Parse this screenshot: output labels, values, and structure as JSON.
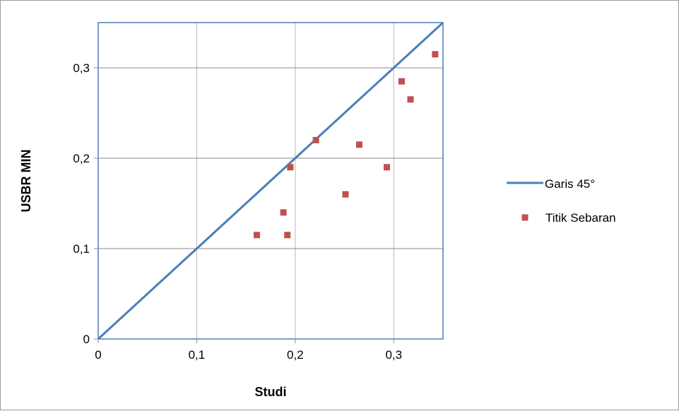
{
  "chart_data": {
    "type": "scatter",
    "xlabel": "Studi",
    "ylabel": "USBR MIN",
    "xlim": [
      0,
      0.35
    ],
    "ylim": [
      0,
      0.35
    ],
    "x_ticks": [
      {
        "value": 0,
        "label": "0"
      },
      {
        "value": 0.1,
        "label": "0,1"
      },
      {
        "value": 0.2,
        "label": "0,2"
      },
      {
        "value": 0.3,
        "label": "0,3"
      }
    ],
    "y_ticks": [
      {
        "value": 0,
        "label": "0"
      },
      {
        "value": 0.1,
        "label": "0,1"
      },
      {
        "value": 0.2,
        "label": "0,2"
      },
      {
        "value": 0.3,
        "label": "0,3"
      }
    ],
    "grid": true,
    "legend_position": "right",
    "series": [
      {
        "name": "Garis 45°",
        "kind": "line",
        "color": "#4a7ebb",
        "x": [
          0,
          0.35
        ],
        "y": [
          0,
          0.35
        ]
      },
      {
        "name": "Titik Sebaran",
        "kind": "scatter",
        "color": "#c0504d",
        "x": [
          0.161,
          0.188,
          0.192,
          0.195,
          0.221,
          0.251,
          0.265,
          0.293,
          0.308,
          0.317,
          0.342
        ],
        "y": [
          0.115,
          0.14,
          0.115,
          0.19,
          0.22,
          0.16,
          0.215,
          0.19,
          0.285,
          0.265,
          0.315
        ]
      }
    ]
  }
}
